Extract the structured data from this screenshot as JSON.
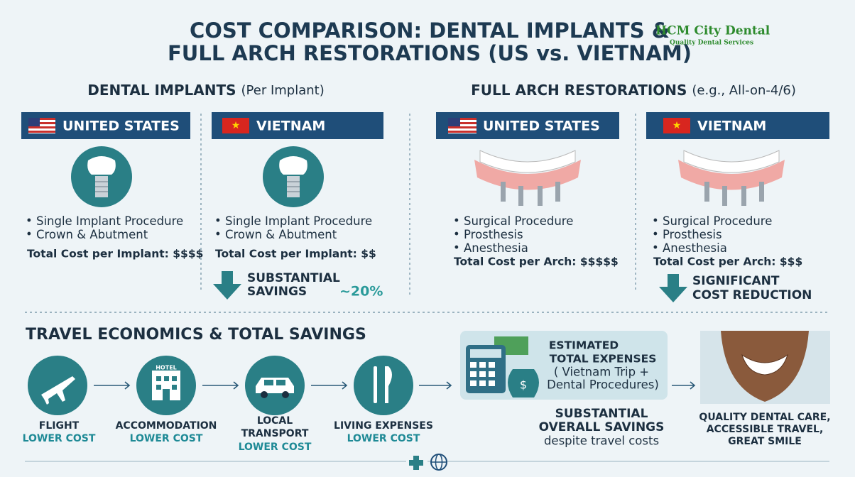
{
  "title": [
    "COST COMPARISON: DENTAL IMPLANTS &",
    "FULL ARCH RESTORATIONS (US vs. VIETNAM)"
  ],
  "logo": {
    "name": "HCM City Dental",
    "tagline": "Quality Dental Services"
  },
  "implants": {
    "heading": "DENTAL IMPLANTS",
    "note": "(Per Implant)",
    "us": {
      "country": "UNITED STATES",
      "items": [
        "Single Implant Procedure",
        "Crown & Abutment"
      ],
      "total": "Total Cost per Implant: $$$$"
    },
    "vn": {
      "country": "VIETNAM",
      "items": [
        "Single Implant Procedure",
        "Crown & Abutment"
      ],
      "total": "Total Cost per Implant: $$"
    },
    "savings": [
      "SUBSTANTIAL",
      "SAVINGS"
    ],
    "percent": "~20%"
  },
  "full_arch": {
    "heading": "FULL ARCH RESTORATIONS",
    "note": "(e.g., All-on-4/6)",
    "us": {
      "country": "UNITED STATES",
      "items": [
        "Surgical Procedure",
        "Prosthesis",
        "Anesthesia"
      ],
      "total": "Total Cost per Arch: $$$$$"
    },
    "vn": {
      "country": "VIETNAM",
      "items": [
        "Surgical Procedure",
        "Prosthesis",
        "Anesthesia"
      ],
      "total": "Total Cost per Arch: $$$"
    },
    "savings": [
      "SIGNIFICANT",
      "COST REDUCTION"
    ]
  },
  "travel": {
    "heading": "TRAVEL ECONOMICS & TOTAL SAVINGS",
    "steps": [
      {
        "label": [
          "FLIGHT"
        ],
        "note": "LOWER COST"
      },
      {
        "label": [
          "ACCOMMODATION"
        ],
        "note": "LOWER COST",
        "icon_text": "HOTEL"
      },
      {
        "label": [
          "LOCAL",
          "TRANSPORT"
        ],
        "note": "LOWER COST"
      },
      {
        "label": [
          "LIVING EXPENSES"
        ],
        "note": "LOWER COST"
      }
    ],
    "expenses": [
      "ESTIMATED",
      "TOTAL EXPENSES",
      "(  Vietnam Trip +",
      "Dental Procedures)"
    ],
    "overall": [
      "SUBSTANTIAL",
      "OVERALL SAVINGS"
    ],
    "overall_note": "despite travel costs",
    "result": [
      "QUALITY DENTAL CARE,",
      "ACCESSIBLE TRAVEL,",
      "GREAT SMILE"
    ]
  }
}
